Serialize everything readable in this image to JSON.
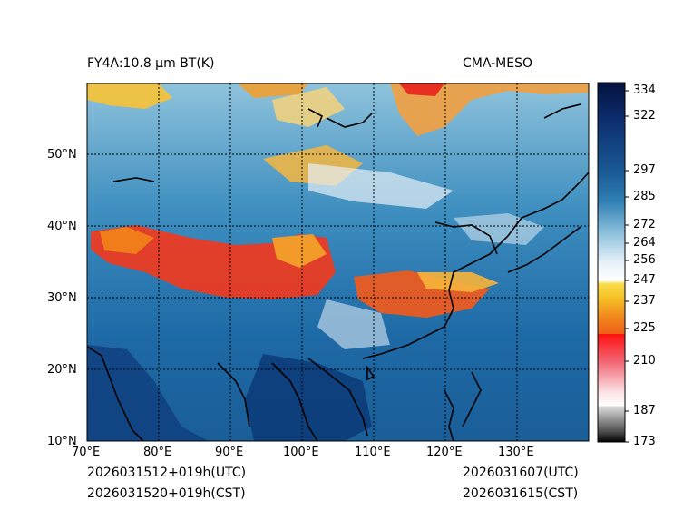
{
  "header": {
    "product": "FY4A:10.8 µm BT(K)",
    "source": "CMA-MESO"
  },
  "footer": {
    "init_utc": "2026031512+019h(UTC)",
    "init_cst": "2026031520+019h(CST)",
    "valid_utc": "2026031607(UTC)",
    "valid_cst": "2026031615(CST)"
  },
  "map": {
    "lon_labels": [
      "70°E",
      "80°E",
      "90°E",
      "100°E",
      "110°E",
      "120°E",
      "130°E"
    ],
    "lat_labels": [
      "10°N",
      "20°N",
      "30°N",
      "40°N",
      "50°N"
    ],
    "gridlines": "dotted",
    "extent": {
      "lon": [
        70,
        140
      ],
      "lat": [
        10,
        60
      ]
    }
  },
  "colorbar": {
    "ticks": [
      "334",
      "322",
      "297",
      "285",
      "272",
      "264",
      "256",
      "247",
      "237",
      "225",
      "210",
      "187",
      "173"
    ],
    "range": [
      173,
      336
    ],
    "colors": {
      "hot": "#000000",
      "warm_mid": "#0a3d80",
      "warm_low": "#6fb0d2",
      "white": "#ffffff",
      "yellow": "#f6c026",
      "orange": "#f26b14",
      "red": "#f01010",
      "pink": "#f7c8d0",
      "gray": "#8a8a8a"
    }
  }
}
